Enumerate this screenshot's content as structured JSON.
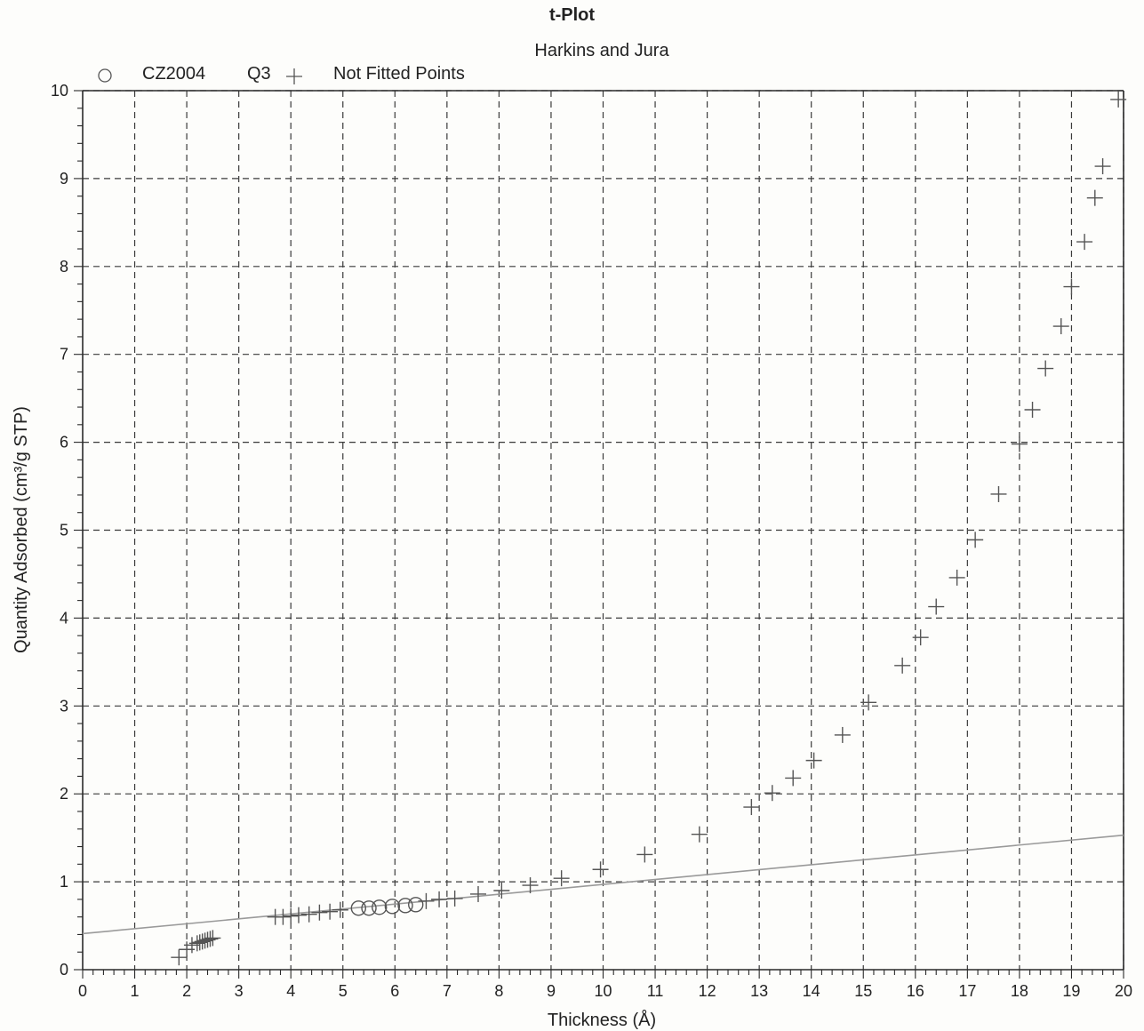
{
  "chart_data": {
    "type": "scatter",
    "title": "t-Plot",
    "subtitle": "Harkins and Jura",
    "xlabel": "Thickness (Å)",
    "ylabel": "Quantity Adsorbed (cm³/g STP)",
    "xlim": [
      0,
      20
    ],
    "ylim": [
      0,
      10
    ],
    "x_ticks": [
      "0",
      "1",
      "2",
      "3",
      "4",
      "5",
      "6",
      "7",
      "8",
      "9",
      "10",
      "11",
      "12",
      "13",
      "14",
      "15",
      "16",
      "17",
      "18",
      "19",
      "20"
    ],
    "y_ticks": [
      "0",
      "1",
      "2",
      "3",
      "4",
      "5",
      "6",
      "7",
      "8",
      "9",
      "10"
    ],
    "grid": true,
    "legend": {
      "position": "top-left",
      "sample_name": "CZ2004",
      "sample_suffix": "Q3",
      "not_fitted_label": "Not Fitted Points"
    },
    "series": [
      {
        "name": "CZ2004",
        "marker": "circle",
        "x": [
          5.3,
          5.5,
          5.7,
          5.95,
          6.2,
          6.4
        ],
        "y": [
          0.7,
          0.7,
          0.71,
          0.72,
          0.73,
          0.74
        ]
      },
      {
        "name": "Not Fitted Points",
        "marker": "plus",
        "x": [
          1.85,
          2.0,
          2.1,
          2.2,
          2.25,
          2.3,
          2.35,
          2.4,
          2.45,
          2.5,
          3.7,
          3.85,
          4.0,
          4.15,
          4.35,
          4.55,
          4.75,
          4.95,
          6.6,
          6.85,
          7.15,
          7.6,
          8.05,
          8.6,
          9.2,
          9.95,
          10.8,
          11.85,
          12.85,
          13.25,
          13.65,
          14.05,
          14.6,
          15.1,
          15.75,
          16.1,
          16.4,
          16.8,
          17.15,
          17.6,
          18.0,
          18.25,
          18.5,
          18.8,
          19.0,
          19.25,
          19.45,
          19.6,
          19.9
        ],
        "y": [
          0.14,
          0.23,
          0.28,
          0.3,
          0.31,
          0.32,
          0.33,
          0.34,
          0.35,
          0.36,
          0.6,
          0.6,
          0.61,
          0.62,
          0.63,
          0.65,
          0.66,
          0.68,
          0.78,
          0.8,
          0.81,
          0.86,
          0.9,
          0.96,
          1.04,
          1.14,
          1.31,
          1.54,
          1.85,
          2.01,
          2.18,
          2.38,
          2.67,
          3.04,
          3.46,
          3.78,
          4.13,
          4.46,
          4.89,
          5.41,
          5.98,
          6.37,
          6.84,
          7.32,
          7.77,
          8.28,
          8.78,
          9.14,
          9.9
        ]
      }
    ],
    "fit_line": {
      "x": [
        0,
        20
      ],
      "y": [
        0.41,
        1.53
      ]
    },
    "colors": {
      "axis": "#2a2a2a",
      "grid": "#3a3a3a",
      "fit": "#9a9a9a",
      "marker": "#555555"
    }
  }
}
